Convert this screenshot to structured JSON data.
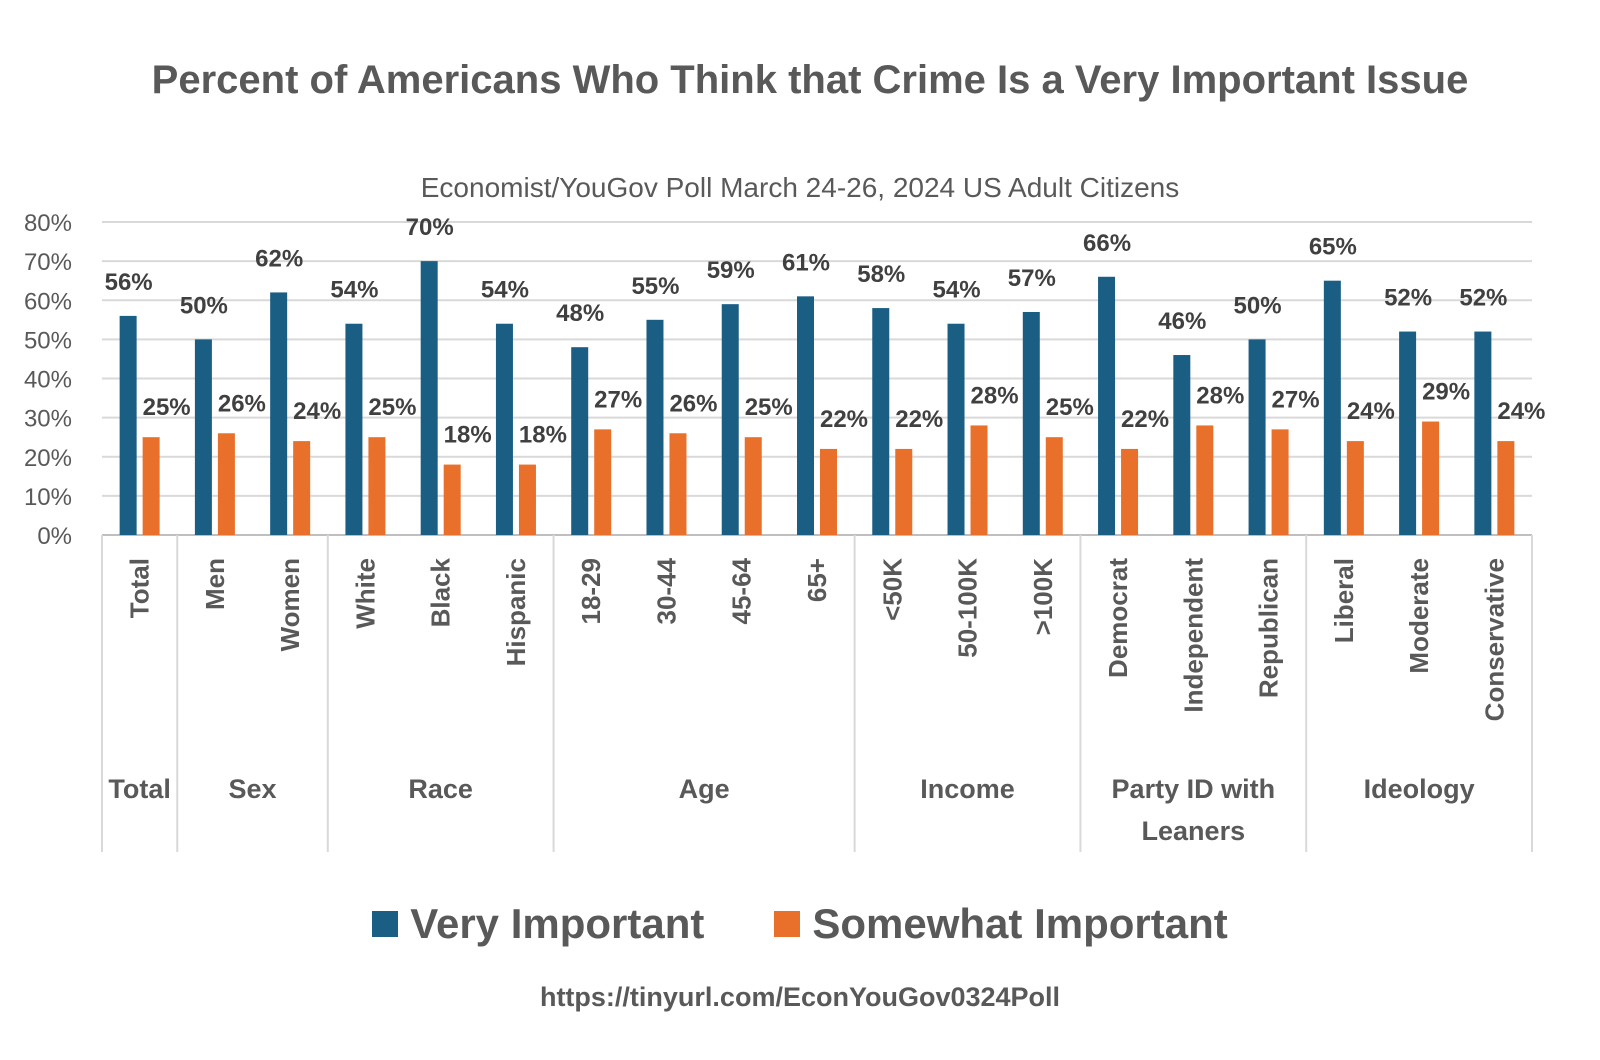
{
  "chart_data": {
    "type": "bar",
    "title": "Percent of Americans Who Think that Crime Is a Very Important Issue",
    "subtitle": "Economist/YouGov Poll March 24-26, 2024 US Adult Citizens",
    "ylim": [
      0,
      80
    ],
    "yticks": [
      "0%",
      "10%",
      "20%",
      "30%",
      "40%",
      "50%",
      "60%",
      "70%",
      "80%"
    ],
    "grid": true,
    "legend_position": "bottom",
    "categories": [
      "Total",
      "Men",
      "Women",
      "White",
      "Black",
      "Hispanic",
      "18-29",
      "30-44",
      "45-64",
      "65+",
      "<50K",
      "50-100K",
      ">100K",
      "Democrat",
      "Independent",
      "Republican",
      "Liberal",
      "Moderate",
      "Conservative"
    ],
    "groups": [
      {
        "name": "Total",
        "size": 1
      },
      {
        "name": "Sex",
        "size": 2
      },
      {
        "name": "Race",
        "size": 3
      },
      {
        "name": "Age",
        "size": 4
      },
      {
        "name": "Income",
        "size": 3
      },
      {
        "name": "Party ID with Leaners",
        "size": 3
      },
      {
        "name": "Ideology",
        "size": 3
      }
    ],
    "series": [
      {
        "name": "Very Important",
        "color": "#1a5e84",
        "values": [
          56,
          50,
          62,
          54,
          70,
          54,
          48,
          55,
          59,
          61,
          58,
          54,
          57,
          66,
          46,
          50,
          65,
          52,
          52
        ]
      },
      {
        "name": "Somewhat Important",
        "color": "#e8702a",
        "values": [
          25,
          26,
          24,
          25,
          18,
          18,
          27,
          26,
          25,
          22,
          22,
          28,
          25,
          22,
          28,
          27,
          24,
          29,
          24
        ]
      }
    ],
    "value_suffix": "%"
  },
  "source_url": "https://tinyurl.com/EconYouGov0324Poll"
}
